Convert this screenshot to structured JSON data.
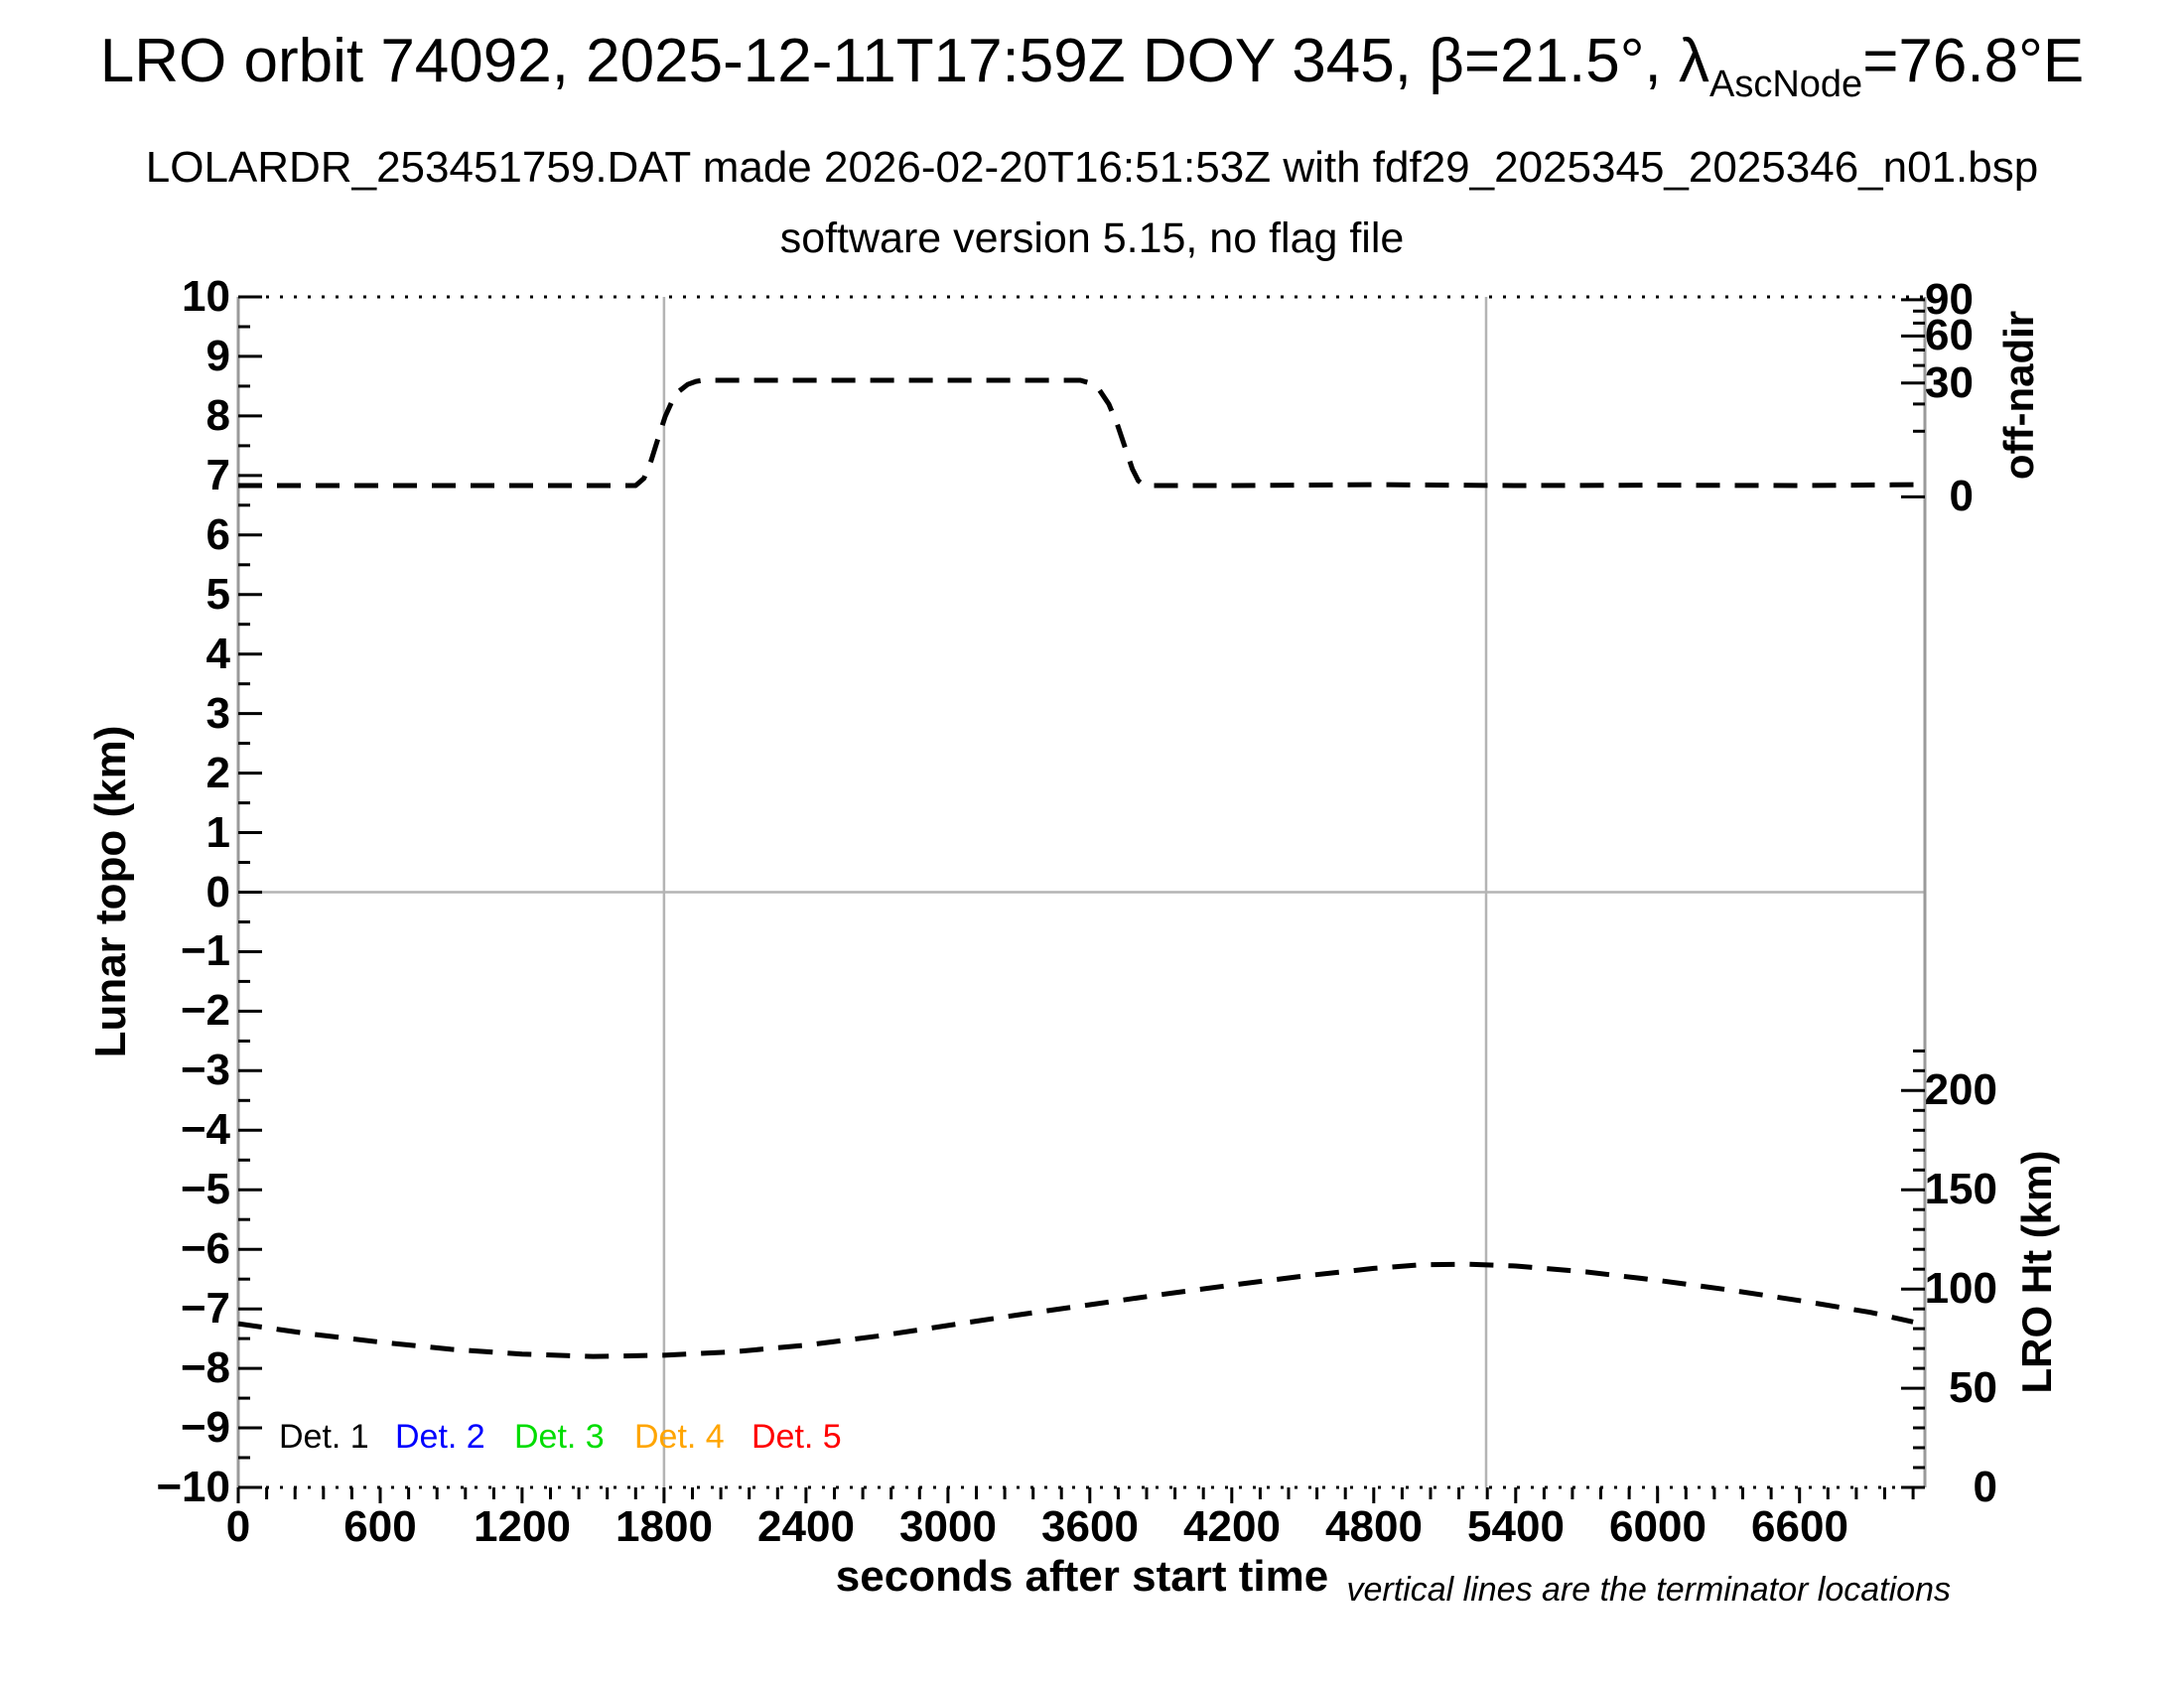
{
  "header": {
    "title_prefix": "LRO orbit 74092, 2025-12-11T17:59Z DOY 345, β=21.5°, λ",
    "title_sub": "AscNode",
    "title_suffix": "=76.8°E",
    "subtitle": "LOLARDR_253451759.DAT made 2026-02-20T16:51:53Z with fdf29_2025345_2025346_n01.bsp",
    "subtitle2": "software version 5.15, no flag file"
  },
  "footnote": "vertical lines are the terminator locations",
  "legend": {
    "items": [
      {
        "label": "Det. 1",
        "color": "#000000"
      },
      {
        "label": "Det. 2",
        "color": "#0000ff"
      },
      {
        "label": "Det. 3",
        "color": "#00dd00"
      },
      {
        "label": "Det. 4",
        "color": "#ffa500"
      },
      {
        "label": "Det. 5",
        "color": "#ff0000"
      }
    ]
  },
  "axes": {
    "x": {
      "label": "seconds after start time",
      "min": 0,
      "max": 7130,
      "major_tick_step": 600,
      "minor_tick_step": 120,
      "tick_labels": [
        "0",
        "600",
        "1200",
        "1800",
        "2400",
        "3000",
        "3600",
        "4200",
        "4800",
        "5400",
        "6000",
        "6600"
      ]
    },
    "y_left": {
      "label": "Lunar topo (km)",
      "min": -10,
      "max": 10,
      "major_tick_step": 1,
      "minor_tick_step": 0.5
    },
    "y_right_top": {
      "label": "off-nadir",
      "unit": "deg",
      "scale": "sqrt",
      "labeled_ticks": [
        90,
        60,
        30,
        0
      ],
      "minor_tick_step_deg": 10
    },
    "y_right_bottom": {
      "label": "LRO Ht (km)",
      "unit": "km",
      "scale": "linear",
      "labeled_ticks": [
        200,
        150,
        100,
        50,
        0
      ],
      "minor_tick_step_km": 10,
      "max_tick_km": 220
    }
  },
  "calibration": {
    "off_nadir_topo_zero": 6.64,
    "off_nadir_topo_per_sqrt_deg": 0.349,
    "lro_ht_km_per_topo_unit": 30,
    "lro_ht_zero_at_topo": -10
  },
  "chart_data": {
    "type": "line",
    "title": "LRO orbit 74092, 2025-12-11T17:59Z DOY 345, β=21.5°, λAscNode=76.8°E",
    "xlabel": "seconds after start time",
    "x_range_s": [
      0,
      7130
    ],
    "left_axis": {
      "label": "Lunar topo (km)",
      "range": [
        -10,
        10
      ]
    },
    "right_axes": [
      {
        "label": "off-nadir",
        "unit": "deg",
        "tick_values": [
          0,
          30,
          60,
          90
        ]
      },
      {
        "label": "LRO Ht (km)",
        "unit": "km",
        "tick_values": [
          0,
          50,
          100,
          150,
          200
        ]
      }
    ],
    "grid": "off",
    "legend_position": "bottom-left-inside",
    "terminator_lines_s": [
      1800,
      5275
    ],
    "zero_topo_line": 0,
    "series": [
      {
        "name": "spacecraft off-nadir angle",
        "unit": "deg",
        "line_style": "dashed",
        "color": "#000000",
        "points": [
          [
            0,
            0.3
          ],
          [
            300,
            0.3
          ],
          [
            600,
            0.3
          ],
          [
            900,
            0.3
          ],
          [
            1200,
            0.3
          ],
          [
            1500,
            0.3
          ],
          [
            1680,
            0.3
          ],
          [
            1715,
            0.8
          ],
          [
            1745,
            3.0
          ],
          [
            1775,
            8.0
          ],
          [
            1805,
            15.0
          ],
          [
            1835,
            21.5
          ],
          [
            1865,
            26.0
          ],
          [
            1900,
            29.3
          ],
          [
            1935,
            30.9
          ],
          [
            1965,
            31.5
          ],
          [
            2300,
            31.5
          ],
          [
            2700,
            31.5
          ],
          [
            3100,
            31.5
          ],
          [
            3560,
            31.5
          ],
          [
            3600,
            30.0
          ],
          [
            3640,
            26.5
          ],
          [
            3680,
            20.0
          ],
          [
            3715,
            12.5
          ],
          [
            3750,
            5.5
          ],
          [
            3780,
            1.8
          ],
          [
            3805,
            0.6
          ],
          [
            3830,
            0.3
          ],
          [
            4200,
            0.3
          ],
          [
            4800,
            0.35
          ],
          [
            5400,
            0.3
          ],
          [
            6000,
            0.32
          ],
          [
            6600,
            0.3
          ],
          [
            7100,
            0.35
          ]
        ]
      },
      {
        "name": "LRO height above surface",
        "unit": "km",
        "line_style": "dashed",
        "color": "#000000",
        "points": [
          [
            0,
            82.5
          ],
          [
            300,
            77.4
          ],
          [
            600,
            73.2
          ],
          [
            900,
            69.6
          ],
          [
            1200,
            67.2
          ],
          [
            1500,
            66.0
          ],
          [
            1800,
            66.6
          ],
          [
            2100,
            68.4
          ],
          [
            2400,
            71.7
          ],
          [
            2700,
            76.2
          ],
          [
            3000,
            81.6
          ],
          [
            3300,
            87.0
          ],
          [
            3600,
            92.1
          ],
          [
            3900,
            97.2
          ],
          [
            4200,
            102.0
          ],
          [
            4500,
            106.5
          ],
          [
            4800,
            110.4
          ],
          [
            5000,
            112.2
          ],
          [
            5200,
            112.5
          ],
          [
            5400,
            111.6
          ],
          [
            5700,
            108.6
          ],
          [
            6000,
            104.4
          ],
          [
            6300,
            99.6
          ],
          [
            6600,
            94.2
          ],
          [
            6900,
            88.2
          ],
          [
            7080,
            83.4
          ]
        ]
      }
    ]
  }
}
